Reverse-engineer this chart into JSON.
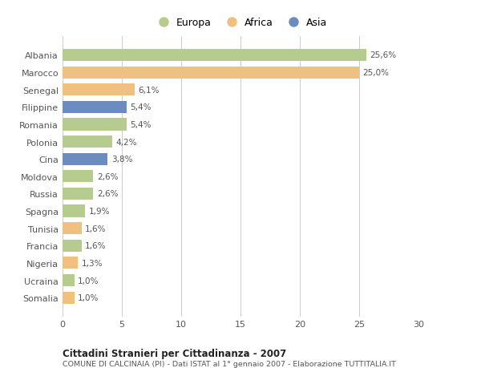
{
  "countries": [
    "Albania",
    "Marocco",
    "Senegal",
    "Filippine",
    "Romania",
    "Polonia",
    "Cina",
    "Moldova",
    "Russia",
    "Spagna",
    "Tunisia",
    "Francia",
    "Nigeria",
    "Ucraina",
    "Somalia"
  ],
  "values": [
    25.6,
    25.0,
    6.1,
    5.4,
    5.4,
    4.2,
    3.8,
    2.6,
    2.6,
    1.9,
    1.6,
    1.6,
    1.3,
    1.0,
    1.0
  ],
  "labels": [
    "25,6%",
    "25,0%",
    "6,1%",
    "5,4%",
    "5,4%",
    "4,2%",
    "3,8%",
    "2,6%",
    "2,6%",
    "1,9%",
    "1,6%",
    "1,6%",
    "1,3%",
    "1,0%",
    "1,0%"
  ],
  "continents": [
    "Europa",
    "Africa",
    "Africa",
    "Asia",
    "Europa",
    "Europa",
    "Asia",
    "Europa",
    "Europa",
    "Europa",
    "Africa",
    "Europa",
    "Africa",
    "Europa",
    "Africa"
  ],
  "colors": {
    "Europa": "#b5cc8e",
    "Africa": "#f0c080",
    "Asia": "#6b8cbf"
  },
  "xlim": [
    0,
    30
  ],
  "xticks": [
    0,
    5,
    10,
    15,
    20,
    25,
    30
  ],
  "title": "Cittadini Stranieri per Cittadinanza - 2007",
  "subtitle": "COMUNE DI CALCINAIA (PI) - Dati ISTAT al 1° gennaio 2007 - Elaborazione TUTTITALIA.IT",
  "background_color": "#ffffff",
  "grid_color": "#cccccc",
  "bar_height": 0.7
}
